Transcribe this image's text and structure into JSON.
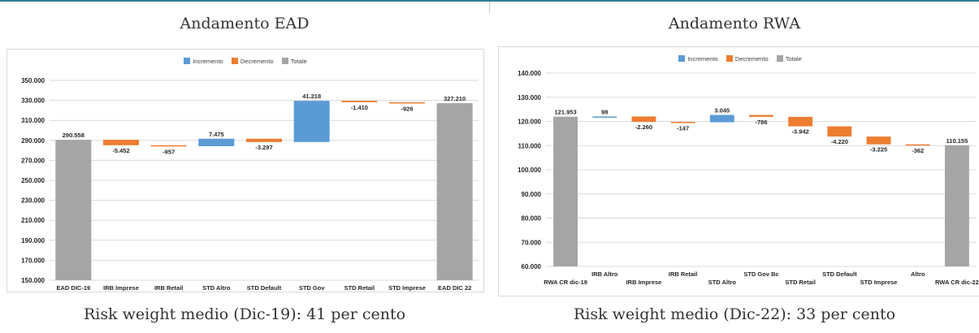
{
  "panels": [
    {
      "title": "Andamento EAD",
      "caption": "Risk weight medio (Dic-19): 41 per cento"
    },
    {
      "title": "Andamento RWA",
      "caption": "Risk weight medio (Dic-22): 33 per cento"
    }
  ],
  "legend": {
    "increase": "Incremento",
    "decrease": "Decremento",
    "total": "Totale"
  },
  "colors": {
    "increase": "#5b9bd5",
    "decrease": "#ed7d31",
    "total": "#a5a5a5"
  },
  "chart_data": [
    {
      "type": "waterfall",
      "title": "Andamento EAD",
      "categories": [
        "EAD DIC-19",
        "IRB Imprese",
        "IRB Retail",
        "STD Altro",
        "STD Default",
        "STD Gov",
        "STD Retail",
        "STD Imprese",
        "EAD DIC 22"
      ],
      "kinds": [
        "total",
        "decrease",
        "decrease",
        "increase",
        "decrease",
        "increase",
        "decrease",
        "decrease",
        "total"
      ],
      "values": [
        290558,
        -5452,
        -957,
        7475,
        -3297,
        41218,
        -1410,
        -926,
        327210
      ],
      "labels": [
        "290.558",
        "-5.452",
        "-957",
        "7.475",
        "-3.297",
        "41.218",
        "-1.410",
        "-926",
        "327.210"
      ],
      "yticks": [
        "150.000",
        "170.000",
        "190.000",
        "210.000",
        "230.000",
        "250.000",
        "270.000",
        "290.000",
        "310.000",
        "330.000",
        "350.000"
      ],
      "ylim": [
        150000,
        350000
      ],
      "ystep": 20000,
      "legend_position": "top",
      "grid": true
    },
    {
      "type": "waterfall",
      "title": "Andamento RWA",
      "categories": [
        "RWA CR dic-19",
        "IRB Altro",
        "IRB Imprese",
        "IRB Retail",
        "STD Altro",
        "STD Gov Bc",
        "STD Retail",
        "STD Default",
        "STD Imprese",
        "Altro",
        "RWA CR dic-22"
      ],
      "kinds": [
        "total",
        "increase",
        "decrease",
        "decrease",
        "increase",
        "decrease",
        "decrease",
        "decrease",
        "decrease",
        "decrease",
        "total"
      ],
      "values": [
        121953,
        98,
        -2260,
        -147,
        3045,
        -786,
        -3942,
        -4220,
        -3225,
        -362,
        110155
      ],
      "labels": [
        "121.953",
        "98",
        "-2.260",
        "-147",
        "3.045",
        "-786",
        "-3.942",
        "-4.220",
        "-3.225",
        "-362",
        "110.155"
      ],
      "yticks": [
        "60.000",
        "70.000",
        "80.000",
        "90.000",
        "100.000",
        "110.000",
        "120.000",
        "130.000",
        "140.000"
      ],
      "ylim": [
        60000,
        140000
      ],
      "ystep": 10000,
      "legend_position": "top",
      "grid": true
    }
  ]
}
